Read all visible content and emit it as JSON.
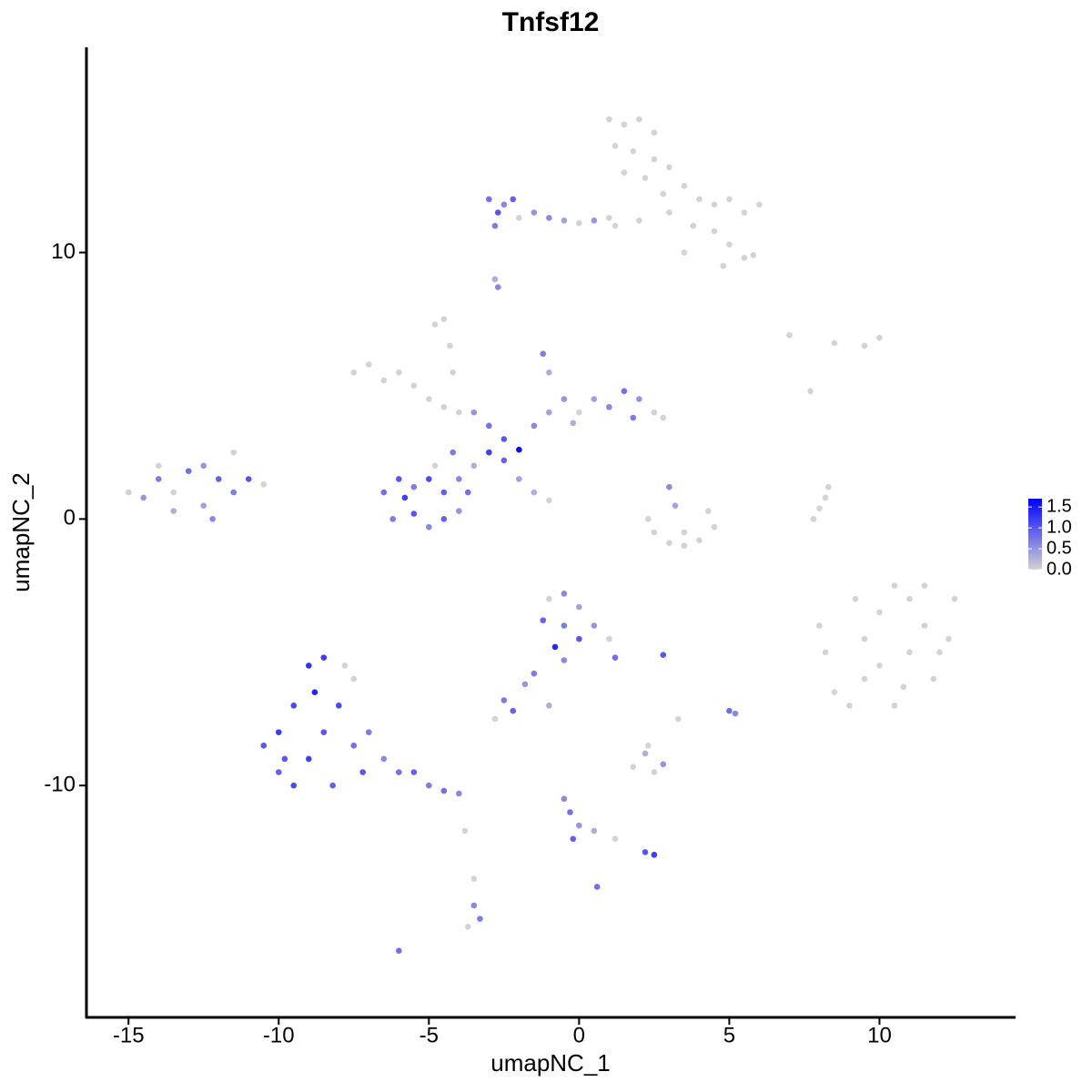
{
  "chart_data": {
    "type": "scatter",
    "title": "Tnfsf12",
    "x_label": "umapNC_1",
    "y_label": "umapNC_2",
    "x": [
      1,
      1.5,
      2,
      2.5,
      1.2,
      1.8,
      2.5,
      3,
      1.5,
      2.2,
      3.5,
      4,
      4.5,
      5,
      5.5,
      3,
      2,
      1,
      3.8,
      4.5,
      5,
      5.5,
      4.8,
      3.5,
      2.8,
      6,
      5.8,
      -3,
      -2.7,
      -2.5,
      -2.2,
      -2.8,
      -2,
      -1.5,
      -1,
      -0.5,
      0,
      0.5,
      1.2,
      -2.7,
      -2.8,
      -7.5,
      -7,
      -6.5,
      -6,
      -5.5,
      -5,
      -4.5,
      -4,
      -4.3,
      -4.5,
      -4.8,
      -4.2,
      -3.5,
      -3,
      -3,
      -2.5,
      -2,
      -2.5,
      -1.5,
      -1,
      -1,
      -1.2,
      -0.5,
      0,
      0.5,
      1,
      1.5,
      2,
      2.5,
      2.8,
      -0.2,
      1.8,
      -2,
      -1.5,
      -1,
      -6.5,
      -6,
      -5.5,
      -5,
      -4.5,
      -4,
      -3.7,
      -6.2,
      -5.5,
      -5,
      -4.5,
      -4,
      -5.8,
      -4.8,
      -4.2,
      -3.5,
      -15,
      -14.5,
      -14,
      -13.5,
      -13,
      -12.5,
      -12.2,
      -12,
      -11.5,
      -11,
      -11.5,
      -12.5,
      -13.5,
      -14,
      -10.5,
      2.3,
      2.5,
      3,
      3.5,
      4,
      4.5,
      4.3,
      3.5,
      3,
      3.2,
      7.8,
      8,
      8.2,
      8.3,
      7,
      8.5,
      9.5,
      10,
      7.7,
      8,
      8.2,
      8.5,
      9,
      9.5,
      9.5,
      10,
      10.5,
      11,
      11.5,
      12,
      12.5,
      11.8,
      10.5,
      10,
      11,
      10.8,
      9.2,
      11.5,
      12.3,
      -10.5,
      -10,
      -10,
      -9.5,
      -9,
      -8.8,
      -8.5,
      -9,
      -8.2,
      -8,
      -7.5,
      -7.5,
      -7.2,
      -7,
      -6.5,
      -6,
      -5.5,
      -5,
      -4.5,
      -4,
      -9.5,
      -8.5,
      -7.8,
      -9.8,
      -1,
      -0.5,
      0,
      -1.2,
      -0.5,
      0,
      -0.8,
      0.5,
      1,
      1.2,
      -0.5,
      -1.5,
      -1.8,
      2.8,
      -2.5,
      -2.2,
      -2.8,
      -1,
      5,
      5.2,
      3.3,
      1.8,
      2.2,
      2.5,
      2.8,
      2.3,
      -0.5,
      -0.3,
      0,
      -0.2,
      0.5,
      1.2,
      2.2,
      2.5,
      0.6,
      -3.8,
      -3.5,
      -3.5,
      -3.3,
      -3.7,
      -6
    ],
    "y": [
      15,
      14.8,
      15,
      14.5,
      14,
      13.8,
      13.5,
      13.2,
      13,
      12.8,
      12.5,
      12,
      11.8,
      12,
      11.5,
      11.5,
      11.2,
      11.3,
      11,
      10.8,
      10.3,
      9.8,
      9.5,
      10,
      12.2,
      11.8,
      9.9,
      12,
      11.5,
      11.8,
      12,
      11,
      11.3,
      11.5,
      11.3,
      11.2,
      11.1,
      11.2,
      11,
      8.7,
      9,
      5.5,
      5.8,
      5.2,
      5.5,
      5,
      4.5,
      4.2,
      4,
      6.5,
      7.5,
      7.3,
      5.5,
      4,
      3.5,
      2.5,
      3,
      2.6,
      2.2,
      3.5,
      4,
      5.5,
      6.2,
      4.5,
      4,
      4.5,
      4.2,
      4.8,
      4.5,
      4,
      3.8,
      3.6,
      3.8,
      1.5,
      1,
      0.7,
      1,
      1.5,
      1.2,
      1.5,
      1,
      1.5,
      1,
      0,
      0.2,
      -0.3,
      0,
      0.3,
      0.8,
      2,
      2.5,
      2,
      1,
      0.8,
      1.5,
      1,
      1.8,
      0.5,
      0,
      1.5,
      1,
      1.5,
      2.5,
      2,
      0.3,
      2,
      1.3,
      0,
      -0.5,
      -0.9,
      -1,
      -0.8,
      -0.3,
      0.3,
      -0.5,
      1.2,
      0.5,
      0,
      0.4,
      0.8,
      1.2,
      6.9,
      6.6,
      6.5,
      6.8,
      4.8,
      -4,
      -5,
      -6.5,
      -7,
      -6,
      -4.5,
      -3.5,
      -2.5,
      -3,
      -4,
      -5,
      -3,
      -6,
      -7,
      -5.5,
      -5,
      -6.3,
      -3,
      -2.5,
      -4.5,
      -8.5,
      -9.5,
      -8,
      -7,
      -5.5,
      -6.5,
      -8,
      -9,
      -10,
      -7,
      -8.5,
      -6,
      -9.5,
      -8,
      -9,
      -9.5,
      -9.5,
      -10,
      -10.2,
      -10.3,
      -10,
      -5.2,
      -5.5,
      -9,
      -3,
      -2.8,
      -3.3,
      -3.8,
      -4,
      -4.5,
      -4.8,
      -4,
      -4.5,
      -5.2,
      -5.3,
      -5.8,
      -6.2,
      -5.1,
      -6.8,
      -7.2,
      -7.5,
      -7,
      -7.2,
      -7.3,
      -7.5,
      -9.3,
      -8.8,
      -9.5,
      -9.2,
      -8.5,
      -10.5,
      -11,
      -11.5,
      -12,
      -11.7,
      -12,
      -12.5,
      -12.6,
      -13.8,
      -11.7,
      -13.5,
      -14.5,
      -15,
      -15.3,
      -16.2
    ],
    "values": [
      0,
      0,
      0,
      0,
      0,
      0,
      0,
      0,
      0,
      0,
      0,
      0,
      0,
      0,
      0,
      0,
      0,
      0,
      0,
      0,
      0,
      0,
      0,
      0,
      0,
      0,
      0,
      0.8,
      1.0,
      0.6,
      0.9,
      0.7,
      0,
      0.5,
      0.6,
      0.4,
      0,
      0.5,
      0,
      0.6,
      0.3,
      0,
      0,
      0,
      0,
      0,
      0,
      0,
      0,
      0,
      0,
      0,
      0,
      0.5,
      0.8,
      1.2,
      1.0,
      1.6,
      0.9,
      0.6,
      0.4,
      0.3,
      0.7,
      0.5,
      0,
      0.4,
      0.6,
      0.8,
      0.5,
      0,
      0,
      0.3,
      0.7,
      0.4,
      0.3,
      0,
      0.8,
      1.0,
      0.7,
      1.1,
      0.9,
      0.6,
      0.8,
      0.7,
      1.0,
      0.6,
      0.9,
      0.5,
      1.2,
      0,
      0.7,
      0.3,
      0,
      0.5,
      0.7,
      0,
      0.8,
      0.4,
      0.6,
      0.9,
      0.7,
      1.0,
      0,
      0.5,
      0.3,
      0,
      0,
      0,
      0,
      0,
      0,
      0,
      0,
      0,
      0,
      0.6,
      0.4,
      0,
      0,
      0,
      0,
      0,
      0,
      0,
      0,
      0,
      0,
      0,
      0,
      0,
      0,
      0,
      0,
      0,
      0,
      0,
      0,
      0,
      0,
      0,
      0,
      0,
      0,
      0,
      0,
      0,
      1.0,
      0.9,
      1.2,
      1.1,
      1.3,
      1.4,
      1.0,
      1.2,
      0.9,
      1.1,
      0.8,
      0,
      1.0,
      0.7,
      0.6,
      0.8,
      0.9,
      0.7,
      0.8,
      0.6,
      1.1,
      1.2,
      0,
      1.0,
      0,
      0.6,
      0.4,
      0.9,
      0.7,
      1.0,
      1.4,
      0.5,
      0,
      0.8,
      0.6,
      0.7,
      0.5,
      1.0,
      0.7,
      0.9,
      0,
      0.3,
      0.8,
      0.6,
      0,
      0,
      0.3,
      0,
      0.5,
      0,
      0.6,
      0.8,
      0.5,
      0.9,
      0.3,
      0,
      1.0,
      1.2,
      0.8,
      0,
      0,
      0.6,
      0.7,
      0,
      0.8
    ],
    "xlim": [
      -16.4,
      14.5
    ],
    "ylim": [
      -18.7,
      17.7
    ],
    "xticks": [
      -15,
      -10,
      -5,
      0,
      5,
      10
    ],
    "yticks": [
      -10,
      0,
      10
    ],
    "colorbar": {
      "low_color": "#d3d3d3",
      "high_color": "#0000ff",
      "lim": [
        0,
        1.7
      ],
      "ticks": [
        {
          "value": 0,
          "label": "0.0"
        },
        0.5,
        {
          "value": 1,
          "label": "1.0"
        },
        1.5
      ]
    }
  }
}
